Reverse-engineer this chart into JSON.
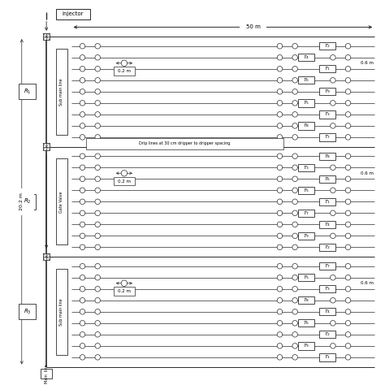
{
  "bg_color": "#ffffff",
  "line_color": "#2a2a2a",
  "figsize": [
    4.74,
    4.74
  ],
  "dpi": 100,
  "treatments_R1": [
    "T_2",
    "T_4",
    "T_1",
    "T_6",
    "T_9",
    "T_5",
    "T_3",
    "T_8",
    "T_7"
  ],
  "treatments_R2": [
    "T_8",
    "T_3",
    "T_6",
    "T_5",
    "T_1",
    "T_7",
    "T_4",
    "T_9",
    "T_2"
  ],
  "treatments_R3": [
    "T_7",
    "T_5",
    "T_3",
    "T_8",
    "T_4",
    "T_6",
    "T_2",
    "T_9",
    "T_1"
  ],
  "label_50m": "50 m",
  "label_06m": "0.6 m",
  "label_02m": "0.2 m",
  "label_202m": "20.2 m",
  "label_drip": "Drip lines at 30 cm dripper to dripper spacing",
  "label_injector": "injector",
  "label_gate_valve": "Gate Valve",
  "label_sub_main": "Sub main line",
  "label_main": "Main  line",
  "r_labels": [
    "R_1",
    "R_2",
    "R_3"
  ]
}
